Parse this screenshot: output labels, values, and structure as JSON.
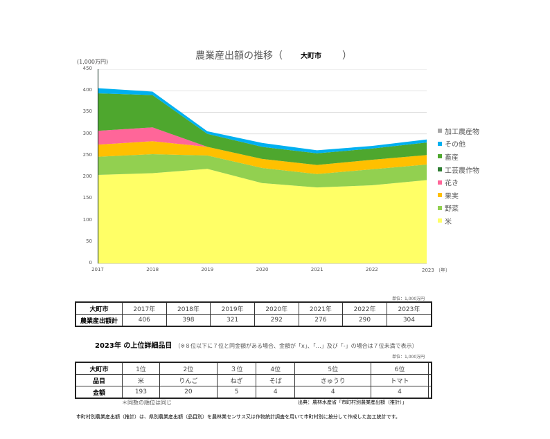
{
  "chart": {
    "title_prefix": "農業産出額の推移（",
    "title_city": "大町市",
    "title_suffix": "）",
    "y_unit": "(1,000万円)",
    "x_unit": "（年）",
    "y_ticks": [
      "450",
      "400",
      "350",
      "300",
      "250",
      "200",
      "150",
      "100",
      "50",
      "0"
    ],
    "x_ticks": [
      "2017",
      "2018",
      "2019",
      "2020",
      "2021",
      "2022",
      "2023"
    ]
  },
  "chart_data": {
    "type": "area",
    "stacked": true,
    "title": "農業産出額の推移（大町市）",
    "xlabel": "（年）",
    "ylabel": "(1,000万円)",
    "ylim": [
      0,
      450
    ],
    "grid": true,
    "legend_position": "right",
    "x": [
      "2017",
      "2018",
      "2019",
      "2020",
      "2021",
      "2022",
      "2023"
    ],
    "series": [
      {
        "name": "米",
        "color": "#FFFF66",
        "values": [
          205,
          209,
          219,
          186,
          176,
          181,
          193
        ]
      },
      {
        "name": "野菜",
        "color": "#92D050",
        "values": [
          42,
          44,
          31,
          35,
          31,
          37,
          36
        ]
      },
      {
        "name": "果実",
        "color": "#FFC000",
        "values": [
          28,
          30,
          20,
          21,
          21,
          22,
          22
        ]
      },
      {
        "name": "花き",
        "color": "#FF6699",
        "values": [
          32,
          32,
          0,
          0,
          0,
          0,
          0
        ]
      },
      {
        "name": "工芸農作物",
        "color": "#2E7D32",
        "values": [
          0,
          0,
          0,
          0,
          0,
          0,
          0
        ]
      },
      {
        "name": "畜産",
        "color": "#4EA72E",
        "values": [
          87,
          75,
          30,
          28,
          27,
          26,
          29
        ]
      },
      {
        "name": "その他",
        "color": "#00B0F0",
        "values": [
          12,
          8,
          6,
          9,
          7,
          6,
          7
        ]
      },
      {
        "name": "加工農産物",
        "color": "#A6A6A6",
        "values": [
          0,
          0,
          0,
          0,
          0,
          0,
          0
        ]
      }
    ]
  },
  "legend": [
    {
      "label": "加工農産物",
      "color": "#A6A6A6"
    },
    {
      "label": "その他",
      "color": "#00B0F0"
    },
    {
      "label": "畜産",
      "color": "#4EA72E"
    },
    {
      "label": "工芸農作物",
      "color": "#2E7D32"
    },
    {
      "label": "花き",
      "color": "#FF6699"
    },
    {
      "label": "果実",
      "color": "#FFC000"
    },
    {
      "label": "野菜",
      "color": "#92D050"
    },
    {
      "label": "米",
      "color": "#FFFF66"
    }
  ],
  "totals_table": {
    "unit": "単位：1,000万円",
    "corner": "大町市",
    "row_label": "農業産出額計",
    "years": [
      "2017年",
      "2018年",
      "2019年",
      "2020年",
      "2021年",
      "2022年",
      "2023年"
    ],
    "values": [
      "406",
      "398",
      "321",
      "292",
      "276",
      "290",
      "304"
    ]
  },
  "top_items": {
    "heading": "2023年 の上位詳細品目",
    "note": "（※８位以下に７位と同金額がある場合、金額が「x」、「…」及び「-」の場合は７位未満で表示）",
    "unit": "単位：1,000万円",
    "corner": "大町市",
    "row_item_label": "品目",
    "row_amount_label": "金額",
    "ranks": [
      "1位",
      "2位",
      "３位",
      "4位",
      "5位",
      "6位",
      ""
    ],
    "items": [
      "米",
      "りんご",
      "ねぎ",
      "そば",
      "きゅうり",
      "トマト",
      ""
    ],
    "amounts": [
      "193",
      "20",
      "5",
      "4",
      "4",
      "4",
      ""
    ],
    "same_rank_note": "＊同数の順位は同じ",
    "source": "出典：農林水産省「市町村別農業産出額（推計）」"
  },
  "footnote": "市町村別農業産出額（推計）は、県別農業産出額（品目別）を農林業センサス又は作物統計調査を用いて市町村別に按分して作成した加工統計です。"
}
